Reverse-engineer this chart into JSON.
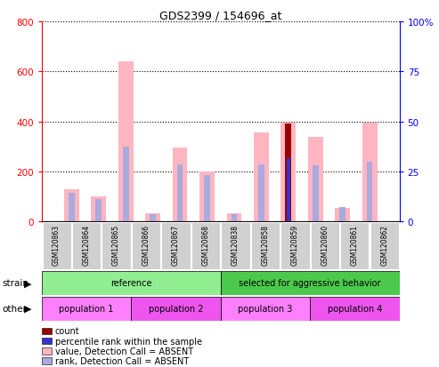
{
  "title": "GDS2399 / 154696_at",
  "samples": [
    "GSM120863",
    "GSM120864",
    "GSM120865",
    "GSM120866",
    "GSM120867",
    "GSM120868",
    "GSM120838",
    "GSM120858",
    "GSM120859",
    "GSM120860",
    "GSM120861",
    "GSM120862"
  ],
  "pink_values": [
    130,
    100,
    640,
    35,
    295,
    200,
    35,
    355,
    395,
    340,
    55,
    395
  ],
  "blue_values": [
    115,
    90,
    300,
    30,
    230,
    185,
    30,
    230,
    255,
    225,
    60,
    240
  ],
  "count_values": [
    0,
    0,
    0,
    0,
    0,
    0,
    0,
    0,
    390,
    0,
    0,
    0
  ],
  "rank_values": [
    0,
    0,
    0,
    0,
    0,
    0,
    0,
    0,
    255,
    0,
    0,
    0
  ],
  "strain_groups": [
    {
      "label": "reference",
      "start": 0,
      "end": 6,
      "color": "#90EE90"
    },
    {
      "label": "selected for aggressive behavior",
      "start": 6,
      "end": 12,
      "color": "#4CC94C"
    }
  ],
  "other_groups": [
    {
      "label": "population 1",
      "start": 0,
      "end": 3,
      "color": "#FF80FF"
    },
    {
      "label": "population 2",
      "start": 3,
      "end": 6,
      "color": "#EE55EE"
    },
    {
      "label": "population 3",
      "start": 6,
      "end": 9,
      "color": "#FF80FF"
    },
    {
      "label": "population 4",
      "start": 9,
      "end": 12,
      "color": "#EE55EE"
    }
  ],
  "ylim_left": [
    0,
    800
  ],
  "ylim_right": [
    0,
    100
  ],
  "yticks_left": [
    0,
    200,
    400,
    600,
    800
  ],
  "yticks_right": [
    0,
    25,
    50,
    75,
    100
  ],
  "ytick_labels_right": [
    "0",
    "25",
    "50",
    "75",
    "100%"
  ],
  "pink_color": "#FFB6C1",
  "lightblue_color": "#AAAADD",
  "darkred_color": "#990000",
  "darkblue_color": "#3333CC",
  "grid_color": "black",
  "sample_bg": "#D0D0D0",
  "strain_label": "strain",
  "other_label": "other",
  "legend_items": [
    {
      "color": "#990000",
      "label": "count"
    },
    {
      "color": "#3333CC",
      "label": "percentile rank within the sample"
    },
    {
      "color": "#FFB6C1",
      "label": "value, Detection Call = ABSENT"
    },
    {
      "color": "#AAAADD",
      "label": "rank, Detection Call = ABSENT"
    }
  ]
}
